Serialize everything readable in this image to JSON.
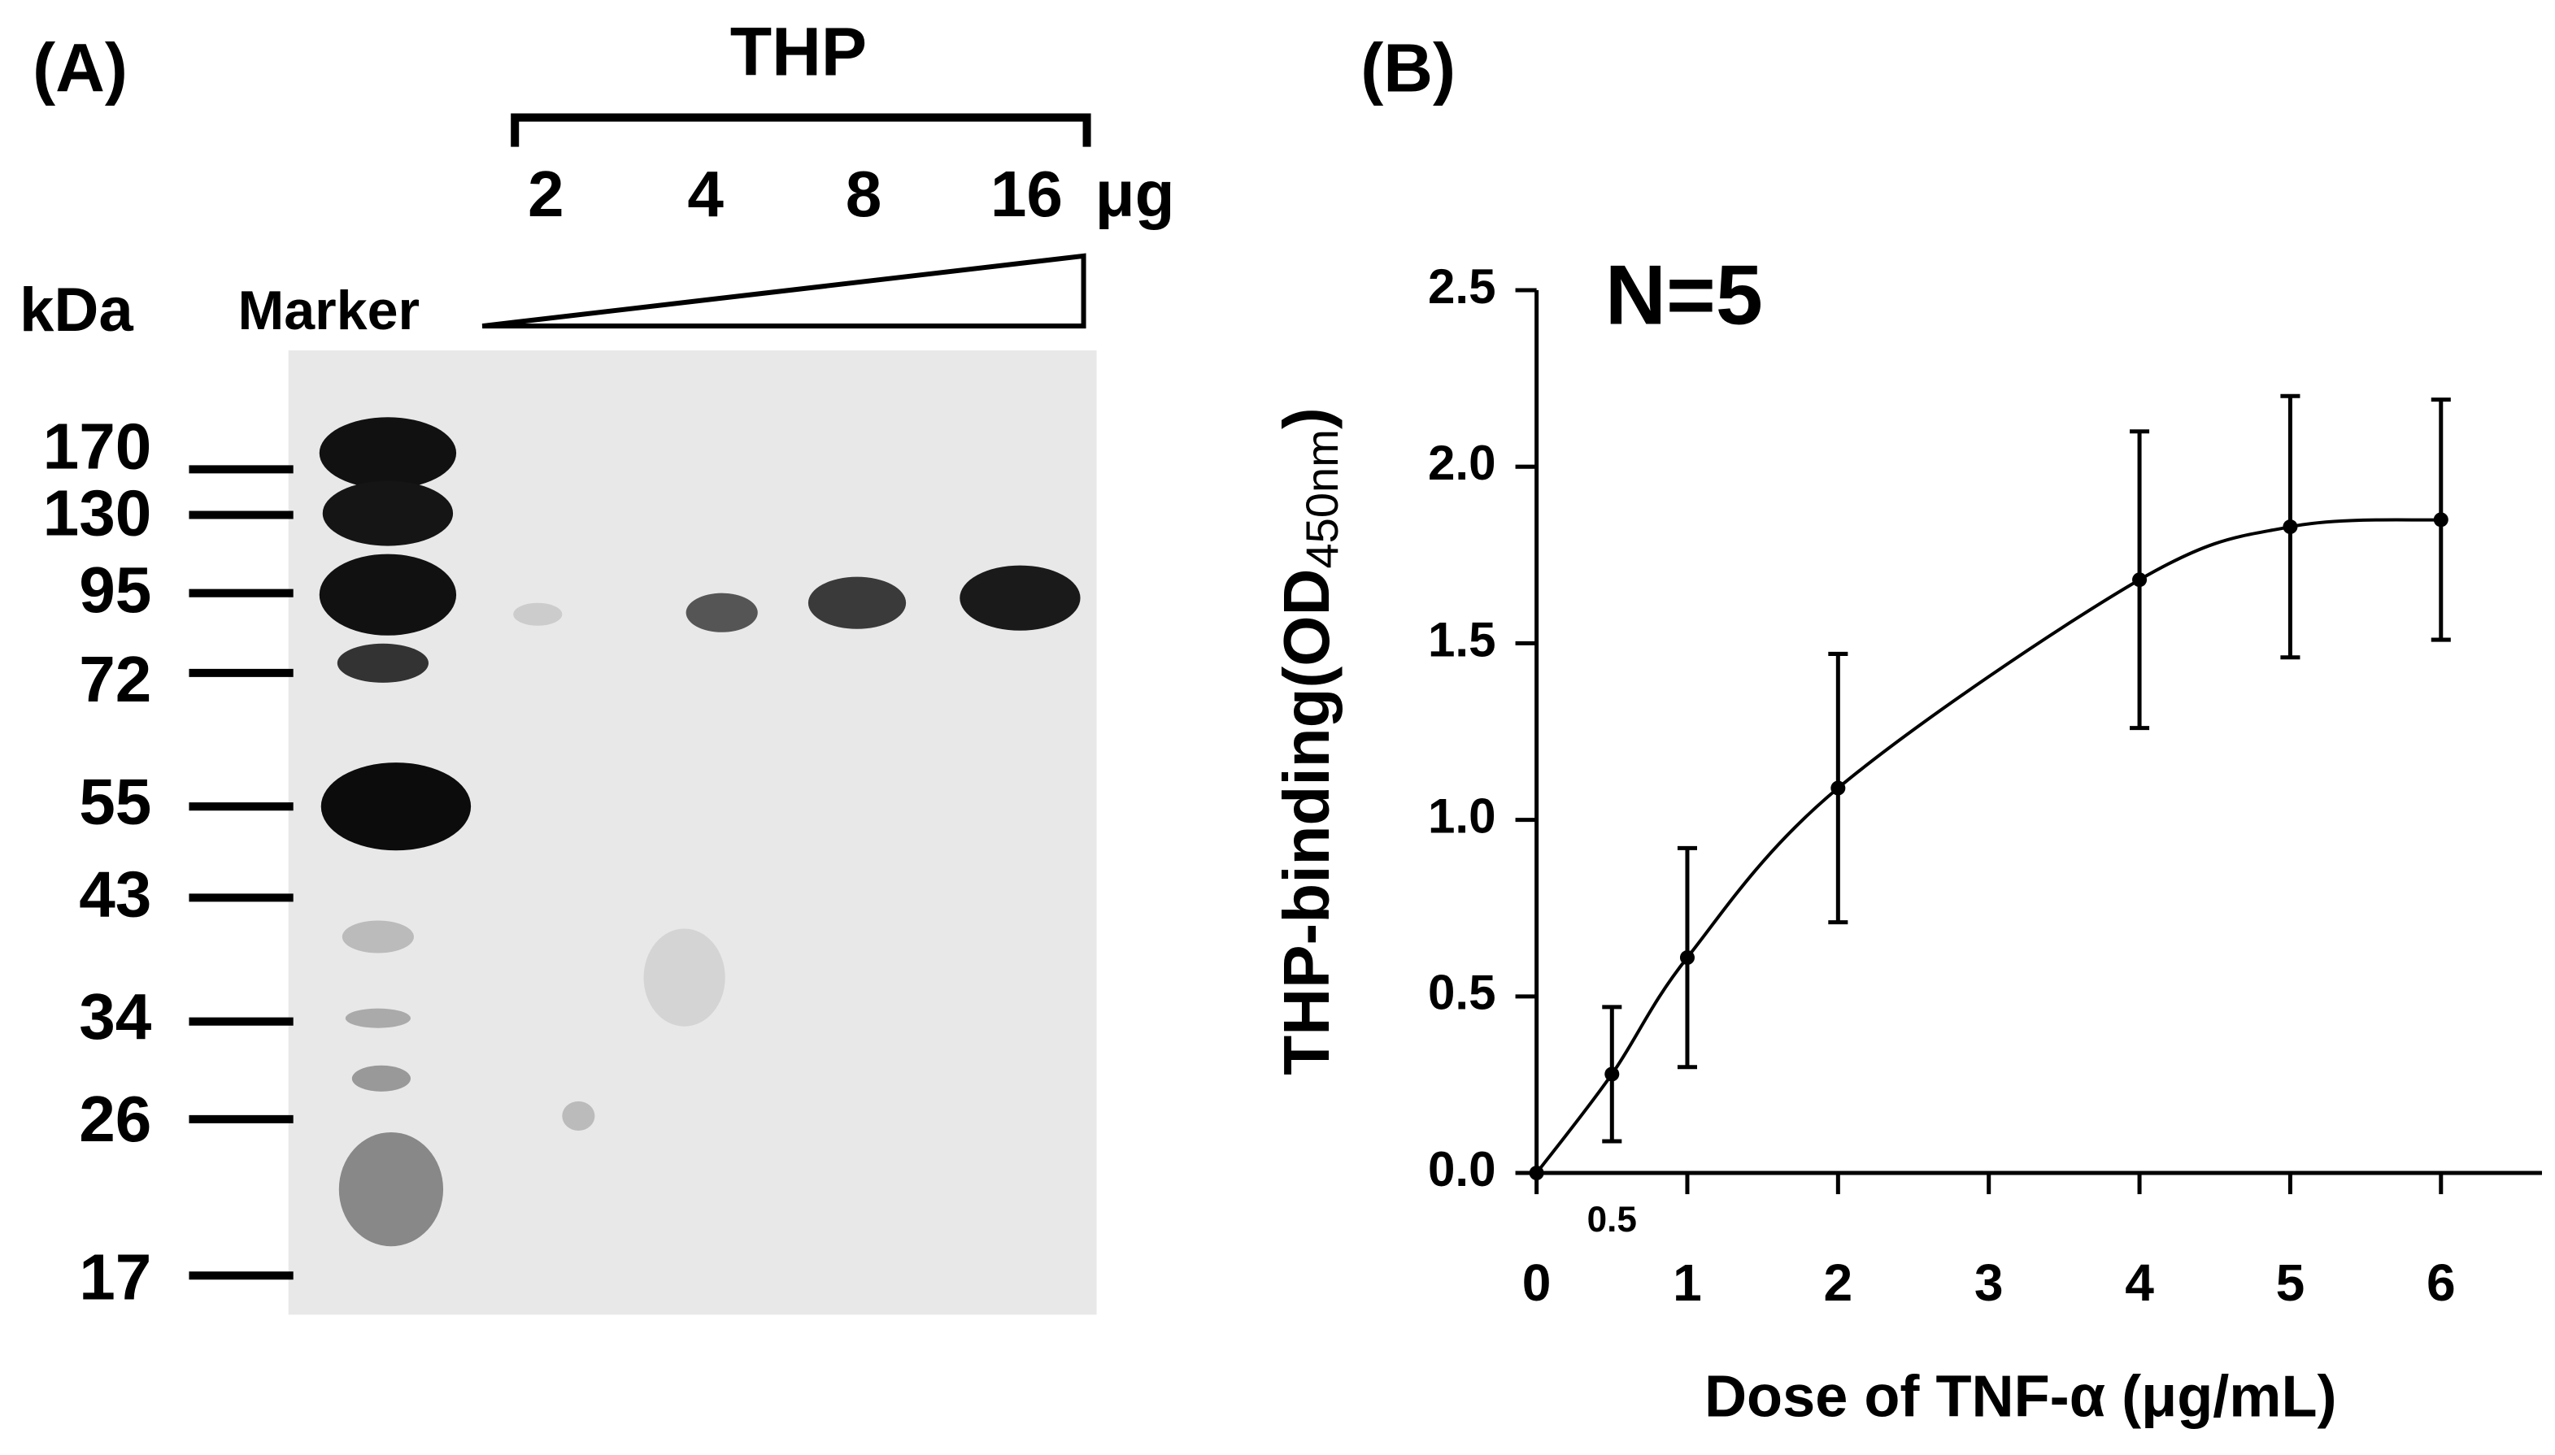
{
  "panel_a": {
    "label": "(A)",
    "group_label": "THP",
    "amounts": [
      "2",
      "4",
      "8",
      "16"
    ],
    "amount_unit": "μg",
    "size_unit": "kDa",
    "marker_label": "Marker",
    "marker_sizes": [
      "170",
      "130",
      "95",
      "72",
      "55",
      "43",
      "34",
      "26",
      "17"
    ]
  },
  "chart_data": {
    "type": "line",
    "panel_label": "(B)",
    "annotation": "N=5",
    "x_label": "Dose of TNF-α (μg/mL)",
    "y_label": [
      "THP-binding(OD",
      "450nm",
      ")"
    ],
    "x": [
      0,
      0.5,
      1,
      2,
      4,
      5,
      6
    ],
    "values": [
      0,
      0.28,
      0.61,
      1.09,
      1.68,
      1.83,
      1.85
    ],
    "errors": [
      0,
      0.19,
      0.31,
      0.38,
      0.42,
      0.37,
      0.34
    ],
    "color": "#000000",
    "xlim": [
      0,
      6.67
    ],
    "xticks": [
      0,
      0.5,
      1,
      2,
      3,
      4,
      5,
      6
    ],
    "ylim": [
      0,
      2.5
    ],
    "yticks": [
      {
        "value": 0,
        "label": "0.0"
      },
      0.5,
      {
        "value": 1,
        "label": "1.0"
      },
      1.5,
      {
        "value": 2,
        "label": "2.0"
      },
      2.5
    ]
  }
}
